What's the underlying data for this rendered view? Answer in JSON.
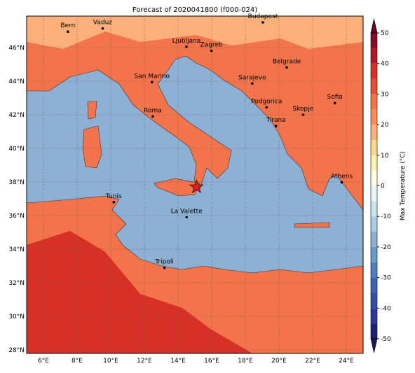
{
  "title": "Forecast of 2020041800 (f000-024)",
  "map": {
    "xlim": [
      5,
      25
    ],
    "ylim": [
      27.79,
      47.875
    ],
    "xticks": [
      {
        "value": 6,
        "label": "6°E"
      },
      {
        "value": 8,
        "label": "8°E"
      },
      {
        "value": 10,
        "label": "10°E"
      },
      {
        "value": 12,
        "label": "12°E"
      },
      {
        "value": 14,
        "label": "14°E"
      },
      {
        "value": 16,
        "label": "16°E"
      },
      {
        "value": 18,
        "label": "18°E"
      },
      {
        "value": 20,
        "label": "20°E"
      },
      {
        "value": 22,
        "label": "22°E"
      },
      {
        "value": 24,
        "label": "24°E"
      }
    ],
    "yticks": [
      {
        "value": 28,
        "label": "28°N"
      },
      {
        "value": 30,
        "label": "30°N"
      },
      {
        "value": 32,
        "label": "32°N"
      },
      {
        "value": 34,
        "label": "34°N"
      },
      {
        "value": 36,
        "label": "36°N"
      },
      {
        "value": 38,
        "label": "38°N"
      },
      {
        "value": 40,
        "label": "40°N"
      },
      {
        "value": 42,
        "label": "42°N"
      },
      {
        "value": 44,
        "label": "44°N"
      },
      {
        "value": 46,
        "label": "46°N"
      }
    ],
    "grid": true
  },
  "cities": [
    {
      "name": "Bern",
      "lon": 7.45,
      "lat": 46.95
    },
    {
      "name": "Vaduz",
      "lon": 9.52,
      "lat": 47.14
    },
    {
      "name": "Budapest",
      "lon": 19.04,
      "lat": 47.5
    },
    {
      "name": "Ljubljana",
      "lon": 14.5,
      "lat": 46.05
    },
    {
      "name": "Zagreb",
      "lon": 15.98,
      "lat": 45.81
    },
    {
      "name": "Belgrade",
      "lon": 20.46,
      "lat": 44.82
    },
    {
      "name": "Sarajevo",
      "lon": 18.41,
      "lat": 43.86
    },
    {
      "name": "San Marino",
      "lon": 12.45,
      "lat": 43.94
    },
    {
      "name": "Sofia",
      "lon": 23.32,
      "lat": 42.7
    },
    {
      "name": "Podgorica",
      "lon": 19.26,
      "lat": 42.44
    },
    {
      "name": "Skopje",
      "lon": 21.43,
      "lat": 42.0
    },
    {
      "name": "Roma",
      "lon": 12.5,
      "lat": 41.9
    },
    {
      "name": "Tirana",
      "lon": 19.82,
      "lat": 41.33
    },
    {
      "name": "Athens",
      "lon": 23.73,
      "lat": 37.98
    },
    {
      "name": "Tunis",
      "lon": 10.18,
      "lat": 36.8
    },
    {
      "name": "La Valette",
      "lon": 14.51,
      "lat": 35.9
    },
    {
      "name": "Tripoli",
      "lon": 13.19,
      "lat": 32.89
    }
  ],
  "star": {
    "lon": 15.1,
    "lat": 37.7,
    "color": "#e41a1c"
  },
  "colorbar": {
    "label": "Max Temperature (°C)",
    "lim": [
      -50,
      50
    ],
    "ticks": [
      -50,
      -40,
      -30,
      -20,
      -10,
      0,
      10,
      20,
      30,
      40,
      50
    ],
    "colors": [
      "#1c2270",
      "#2b3a96",
      "#34509e",
      "#3e64ab",
      "#4f7fbc",
      "#6a9ccb",
      "#8fb0d5",
      "#a9cde3",
      "#c8e4ef",
      "#e9f6f9",
      "#fffde0",
      "#fff1b0",
      "#fed690",
      "#fdb07a",
      "#f88d5a",
      "#f3734a",
      "#e34e34",
      "#d73027",
      "#b5152b",
      "#8a0a25"
    ],
    "under": "#151a5c",
    "over": "#6b0020"
  }
}
